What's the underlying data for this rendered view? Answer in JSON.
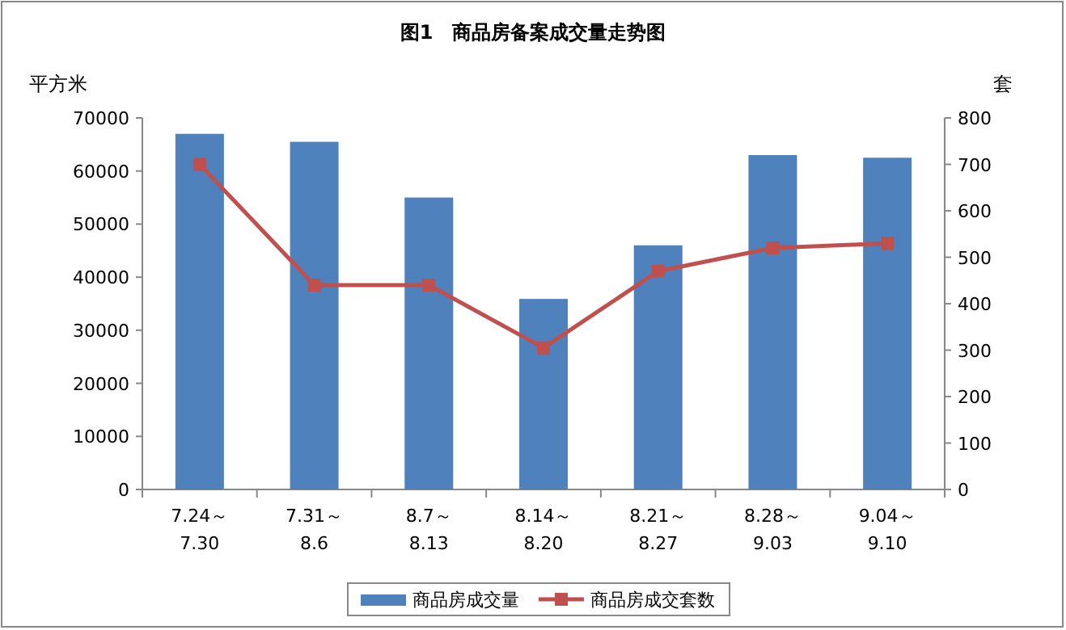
{
  "chart_data": {
    "type": "bar",
    "title": "图1　商品房备案成交量走势图",
    "ylabel": "平方米",
    "y2label": "套",
    "categories": [
      "7.24～\n7.30",
      "7.31～\n8.6",
      "8.7～\n8.13",
      "8.14～\n8.20",
      "8.21～\n8.27",
      "8.28～\n9.03",
      "9.04～\n9.10"
    ],
    "series": [
      {
        "name": "商品房成交量",
        "color": "#4f81bd",
        "values": [
          67000,
          65500,
          55000,
          35900,
          46000,
          63000,
          62500
        ]
      },
      {
        "name": "商品房成交套数",
        "type": "line",
        "axis": "y2",
        "color": "#c0504d",
        "marker": "square",
        "values": [
          700,
          440,
          440,
          305,
          470,
          520,
          530
        ]
      }
    ],
    "ylim": [
      0,
      70000
    ],
    "yticks": [
      0,
      10000,
      20000,
      30000,
      40000,
      50000,
      60000,
      70000
    ],
    "y2lim": [
      0,
      800
    ],
    "y2ticks": [
      0,
      100,
      200,
      300,
      400,
      500,
      600,
      700,
      800
    ],
    "legend": "bottom"
  }
}
